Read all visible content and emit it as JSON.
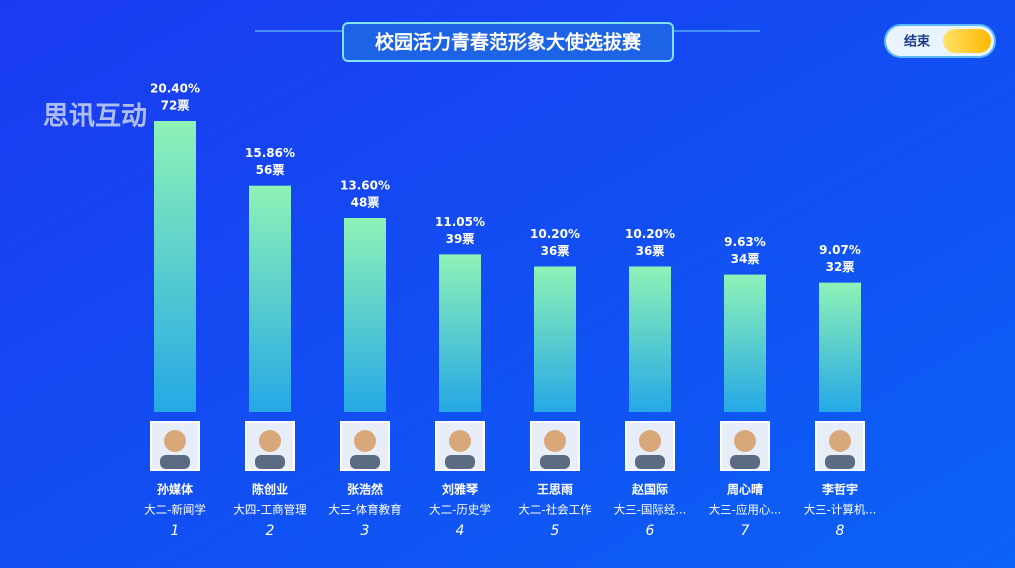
{
  "header": {
    "title": "校园活力青春范形象大使选拔赛",
    "end_button": "结束",
    "watermark": "思讯互动"
  },
  "chart_data": {
    "type": "bar",
    "categories": [
      "孙媒体",
      "陈创业",
      "张浩然",
      "刘雅琴",
      "王思雨",
      "赵国际",
      "周心晴",
      "李哲宇"
    ],
    "subtitles": [
      "大二-新闻学",
      "大四-工商管理",
      "大三-体育教育",
      "大二-历史学",
      "大二-社会工作",
      "大三-国际经...",
      "大三-应用心...",
      "大三-计算机..."
    ],
    "ranks": [
      1,
      2,
      3,
      4,
      5,
      6,
      7,
      8
    ],
    "values": [
      72,
      56,
      48,
      39,
      36,
      36,
      34,
      32
    ],
    "value_labels": [
      "72票",
      "56票",
      "48票",
      "39票",
      "36票",
      "36票",
      "34票",
      "32票"
    ],
    "percent_labels": [
      "20.40%",
      "15.86%",
      "13.60%",
      "11.05%",
      "10.20%",
      "10.20%",
      "9.63%",
      "9.07%"
    ]
  }
}
